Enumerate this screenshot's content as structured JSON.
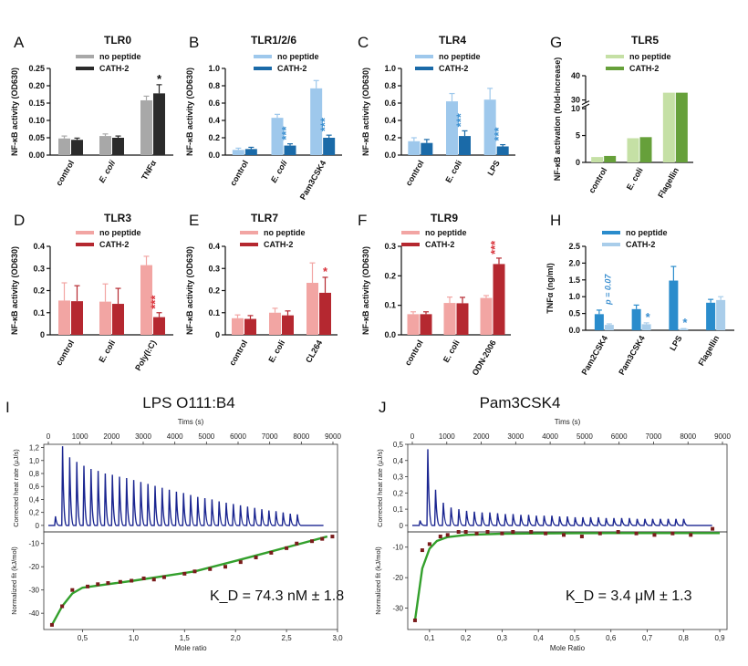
{
  "chart_data": [
    {
      "panel": "A",
      "type": "bar",
      "title": "TLR0",
      "ylabel": "NF-κB activity (OD630)",
      "ylim": [
        0,
        0.25
      ],
      "yticks": [
        "0.00",
        "0.05",
        "0.10",
        "0.15",
        "0.20",
        "0.25"
      ],
      "ytick_values": [
        0,
        0.05,
        0.1,
        0.15,
        0.2,
        0.25
      ],
      "categories": [
        "control",
        "E. coli",
        "TNFα"
      ],
      "series": [
        {
          "name": "no peptide",
          "color": "#a8a8a8",
          "values": [
            0.048,
            0.055,
            0.158
          ],
          "errors": [
            0.007,
            0.006,
            0.012
          ]
        },
        {
          "name": "CATH-2",
          "color": "#2b2b2b",
          "values": [
            0.044,
            0.05,
            0.178
          ],
          "errors": [
            0.005,
            0.005,
            0.025
          ]
        }
      ],
      "annotations": [
        {
          "category": 2,
          "text": "*",
          "color": "#111111"
        }
      ]
    },
    {
      "panel": "B",
      "type": "bar",
      "title": "TLR1/2/6",
      "ylabel": "NF-κB activity (OD630)",
      "ylim": [
        0,
        1.0
      ],
      "yticks": [
        "0.0",
        "0.2",
        "0.4",
        "0.6",
        "0.8",
        "1.0"
      ],
      "ytick_values": [
        0,
        0.2,
        0.4,
        0.6,
        0.8,
        1.0
      ],
      "categories": [
        "control",
        "E. coli",
        "Pam3CSK4"
      ],
      "series": [
        {
          "name": "no peptide",
          "color": "#9ec8ec",
          "values": [
            0.06,
            0.43,
            0.77
          ],
          "errors": [
            0.02,
            0.04,
            0.09
          ]
        },
        {
          "name": "CATH-2",
          "color": "#1a6aa8",
          "values": [
            0.07,
            0.11,
            0.2
          ],
          "errors": [
            0.02,
            0.02,
            0.03
          ]
        }
      ],
      "annotations": [
        {
          "category": 1,
          "text": "***",
          "color": "#3b8fd0"
        },
        {
          "category": 2,
          "text": "***",
          "color": "#3b8fd0"
        }
      ]
    },
    {
      "panel": "C",
      "type": "bar",
      "title": "TLR4",
      "ylabel": "NF-κB activity (OD630)",
      "ylim": [
        0,
        1.0
      ],
      "yticks": [
        "0.0",
        "0.2",
        "0.4",
        "0.6",
        "0.8",
        "1.0"
      ],
      "ytick_values": [
        0,
        0.2,
        0.4,
        0.6,
        0.8,
        1.0
      ],
      "categories": [
        "control",
        "E. coli",
        "LPS"
      ],
      "series": [
        {
          "name": "no peptide",
          "color": "#9ec8ec",
          "values": [
            0.16,
            0.62,
            0.64
          ],
          "errors": [
            0.04,
            0.09,
            0.13
          ]
        },
        {
          "name": "CATH-2",
          "color": "#1a6aa8",
          "values": [
            0.14,
            0.22,
            0.1
          ],
          "errors": [
            0.04,
            0.06,
            0.02
          ]
        }
      ],
      "annotations": [
        {
          "category": 1,
          "text": "***",
          "color": "#3b8fd0"
        },
        {
          "category": 2,
          "text": "***",
          "color": "#3b8fd0"
        }
      ]
    },
    {
      "panel": "G",
      "type": "bar",
      "title": "TLR5",
      "ylabel": "NF-κB activation (fold-increase)",
      "ylim": [
        0,
        40
      ],
      "axis_break": [
        10,
        30
      ],
      "yticks": [
        "0",
        "5",
        "10",
        "30",
        "40"
      ],
      "ytick_values": [
        0,
        5,
        10,
        30,
        40
      ],
      "categories": [
        "control",
        "E. coli",
        "Flagellin"
      ],
      "series": [
        {
          "name": "no peptide",
          "color": "#c5e0a5",
          "values": [
            1.0,
            4.5,
            33
          ],
          "errors": [
            0,
            0,
            0
          ]
        },
        {
          "name": "CATH-2",
          "color": "#66a03a",
          "values": [
            1.2,
            4.7,
            33
          ],
          "errors": [
            0,
            0,
            0
          ]
        }
      ],
      "annotations": []
    },
    {
      "panel": "D",
      "type": "bar",
      "title": "TLR3",
      "ylabel": "NF-κB activity (OD630)",
      "ylim": [
        0,
        0.4
      ],
      "yticks": [
        "0",
        "0.1",
        "0.2",
        "0.3",
        "0.4"
      ],
      "ytick_values": [
        0,
        0.1,
        0.2,
        0.3,
        0.4
      ],
      "categories": [
        "control",
        "E. coli",
        "Poly(I:C)"
      ],
      "series": [
        {
          "name": "no peptide",
          "color": "#f2a5a3",
          "values": [
            0.155,
            0.15,
            0.315
          ],
          "errors": [
            0.08,
            0.08,
            0.04
          ]
        },
        {
          "name": "CATH-2",
          "color": "#b52830",
          "values": [
            0.152,
            0.14,
            0.08
          ],
          "errors": [
            0.07,
            0.07,
            0.02
          ]
        }
      ],
      "annotations": [
        {
          "category": 2,
          "text": "***",
          "color": "#d9333b"
        }
      ]
    },
    {
      "panel": "E",
      "type": "bar",
      "title": "TLR7",
      "ylabel": "NF-κB activity (OD630)",
      "ylim": [
        0,
        0.4
      ],
      "yticks": [
        "0",
        "0.1",
        "0.2",
        "0.3",
        "0.4"
      ],
      "ytick_values": [
        0,
        0.1,
        0.2,
        0.3,
        0.4
      ],
      "categories": [
        "control",
        "E. coli",
        "CL264"
      ],
      "series": [
        {
          "name": "no peptide",
          "color": "#f2a5a3",
          "values": [
            0.075,
            0.1,
            0.235
          ],
          "errors": [
            0.015,
            0.02,
            0.09
          ]
        },
        {
          "name": "CATH-2",
          "color": "#b52830",
          "values": [
            0.072,
            0.088,
            0.19
          ],
          "errors": [
            0.015,
            0.02,
            0.07
          ]
        }
      ],
      "annotations": [
        {
          "category": 2,
          "text": "*",
          "color": "#d9333b"
        }
      ]
    },
    {
      "panel": "F",
      "type": "bar",
      "title": "TLR9",
      "ylabel": "NF-κB activity (OD630)",
      "ylim": [
        0,
        0.3
      ],
      "yticks": [
        "0.0",
        "0.1",
        "0.2",
        "0.3"
      ],
      "ytick_values": [
        0,
        0.1,
        0.2,
        0.3
      ],
      "categories": [
        "control",
        "E. coli",
        "ODN-2006"
      ],
      "series": [
        {
          "name": "no peptide",
          "color": "#f2a5a3",
          "values": [
            0.07,
            0.108,
            0.125
          ],
          "errors": [
            0.008,
            0.02,
            0.008
          ]
        },
        {
          "name": "CATH-2",
          "color": "#b52830",
          "values": [
            0.07,
            0.107,
            0.24
          ],
          "errors": [
            0.008,
            0.02,
            0.02
          ]
        }
      ],
      "annotations": [
        {
          "category": 2,
          "text": "***",
          "color": "#d9333b"
        }
      ]
    },
    {
      "panel": "H",
      "type": "bar",
      "title": "",
      "ylabel": "TNFα (ng/ml)",
      "ylim": [
        0,
        2.5
      ],
      "yticks": [
        "0.0",
        "0.5",
        "1.0",
        "1.5",
        "2.0",
        "2.5"
      ],
      "ytick_values": [
        0,
        0.5,
        1.0,
        1.5,
        2.0,
        2.5
      ],
      "categories": [
        "Pam2CSK4",
        "Pam3CSK4",
        "LPS",
        "Flagellin"
      ],
      "series": [
        {
          "name": "no peptide",
          "color": "#2a8ccc",
          "values": [
            0.48,
            0.63,
            1.48,
            0.82
          ],
          "errors": [
            0.12,
            0.12,
            0.42,
            0.1
          ]
        },
        {
          "name": "CATH-2",
          "color": "#a9cdea",
          "values": [
            0.16,
            0.18,
            0.04,
            0.9
          ],
          "errors": [
            0.03,
            0.04,
            0.01,
            0.1
          ]
        }
      ],
      "annotations": [
        {
          "category": 0,
          "text": "p = 0.07",
          "color": "#3b8fd0",
          "rotated": true
        },
        {
          "category": 1,
          "text": "*",
          "color": "#3b8fd0"
        },
        {
          "category": 2,
          "text": "*",
          "color": "#3b8fd0"
        }
      ]
    },
    {
      "panel": "I",
      "type": "line",
      "title": "LPS O111:B4",
      "top": {
        "xlabel": "Tims (s)",
        "xlim": [
          0,
          9000
        ],
        "xticks": [
          0,
          1000,
          2000,
          3000,
          4000,
          5000,
          6000,
          7000,
          8000,
          9000
        ],
        "ylabel": "Corrected heat rate (μJ/s)",
        "ylim": [
          -0.1,
          1.25
        ],
        "yticks": [
          "0",
          "0,2",
          "0,4",
          "0,6",
          "0,8",
          "1,0",
          "1,2"
        ],
        "ytick_values": [
          0,
          0.2,
          0.4,
          0.6,
          0.8,
          1.0,
          1.2
        ],
        "color": "#1a2590",
        "first_peak_time": 200,
        "injection_interval": 225,
        "peaks": [
          0.14,
          1.22,
          1.05,
          0.98,
          0.92,
          0.87,
          0.84,
          0.8,
          0.78,
          0.75,
          0.73,
          0.7,
          0.67,
          0.64,
          0.61,
          0.58,
          0.55,
          0.52,
          0.5,
          0.47,
          0.44,
          0.42,
          0.4,
          0.37,
          0.35,
          0.33,
          0.31,
          0.29,
          0.27,
          0.25,
          0.23,
          0.22,
          0.2,
          0.18,
          0.17
        ]
      },
      "bottom": {
        "xlabel": "Mole ratio",
        "xlim": [
          0.12,
          3.0
        ],
        "xticks": [
          0.5,
          1.0,
          1.5,
          2.0,
          2.5,
          3.0
        ],
        "xtick_labels": [
          "0,5",
          "1,0",
          "1,5",
          "2,0",
          "2,5",
          "3,0"
        ],
        "ylabel": "Normalized fit (kJ/mol)",
        "ylim": [
          -47,
          -5
        ],
        "yticks": [
          "-10",
          "-20",
          "-30",
          "-40"
        ],
        "ytick_values": [
          -10,
          -20,
          -30,
          -40
        ],
        "points_x": [
          0.2,
          0.3,
          0.4,
          0.55,
          0.65,
          0.75,
          0.87,
          0.98,
          1.1,
          1.2,
          1.3,
          1.5,
          1.6,
          1.75,
          1.9,
          2.05,
          2.2,
          2.35,
          2.5,
          2.6,
          2.75,
          2.85,
          2.95
        ],
        "points_y": [
          -45,
          -37,
          -30,
          -28.5,
          -27.5,
          -27,
          -26.5,
          -26,
          -25,
          -25.5,
          -24.5,
          -23,
          -22,
          -21,
          -20,
          -18,
          -16,
          -14,
          -12,
          -10,
          -9,
          -8,
          -7
        ],
        "fit_x": [
          0.2,
          0.3,
          0.4,
          0.5,
          0.7,
          1.0,
          1.3,
          1.6,
          2.0,
          2.3,
          2.6,
          2.9
        ],
        "fit_y": [
          -45,
          -37,
          -31.5,
          -29,
          -27.8,
          -26,
          -24,
          -22,
          -17.5,
          -14,
          -10.5,
          -7
        ],
        "kd_text": "K_D = 74.3 nM ± 1.8"
      }
    },
    {
      "panel": "J",
      "type": "line",
      "title": "Pam3CSK4",
      "top": {
        "xlabel": "Tims (s)",
        "xlim": [
          0,
          9000
        ],
        "xticks": [
          0,
          1000,
          2000,
          3000,
          4000,
          5000,
          6000,
          7000,
          8000,
          9000
        ],
        "ylabel": "Corrected heat rate (μJ/s)",
        "ylim": [
          -0.04,
          0.5
        ],
        "yticks": [
          "0",
          "0,1",
          "0,2",
          "0,3",
          "0,4",
          "0,5"
        ],
        "ytick_values": [
          0,
          0.1,
          0.2,
          0.3,
          0.4,
          0.5
        ],
        "color": "#1a2590",
        "first_peak_time": 200,
        "injection_interval": 225,
        "peaks": [
          0.03,
          0.47,
          0.22,
          0.14,
          0.11,
          0.1,
          0.09,
          0.085,
          0.08,
          0.08,
          0.075,
          0.07,
          0.07,
          0.065,
          0.065,
          0.06,
          0.06,
          0.06,
          0.055,
          0.055,
          0.05,
          0.05,
          0.05,
          0.05,
          0.045,
          0.045,
          0.045,
          0.045,
          0.04,
          0.04,
          0.04,
          0.04,
          0.04,
          0.04,
          0.04
        ]
      },
      "bottom": {
        "xlabel": "Mole Ratio",
        "xlim": [
          0.04,
          0.92
        ],
        "xticks": [
          0.1,
          0.2,
          0.3,
          0.4,
          0.5,
          0.6,
          0.7,
          0.8,
          0.9
        ],
        "xtick_labels": [
          "0,1",
          "0,2",
          "0,3",
          "0,4",
          "0,5",
          "0,6",
          "0,7",
          "0,8",
          "0,9"
        ],
        "ylabel": "Normalized fit (kJ/mol)",
        "ylim": [
          -37,
          -5
        ],
        "yticks": [
          "-10",
          "-20",
          "-30"
        ],
        "ytick_values": [
          -10,
          -20,
          -30
        ],
        "points_x": [
          0.06,
          0.08,
          0.1,
          0.13,
          0.15,
          0.18,
          0.2,
          0.23,
          0.26,
          0.3,
          0.33,
          0.38,
          0.42,
          0.47,
          0.52,
          0.57,
          0.62,
          0.67,
          0.72,
          0.77,
          0.82,
          0.88
        ],
        "points_y": [
          -34,
          -11,
          -9,
          -6.5,
          -6,
          -5,
          -5,
          -5.5,
          -5,
          -5.5,
          -5,
          -5,
          -5.5,
          -6,
          -6.5,
          -5.5,
          -5,
          -5.5,
          -6,
          -5.5,
          -6,
          -4
        ],
        "fit_x": [
          0.06,
          0.08,
          0.1,
          0.12,
          0.15,
          0.2,
          0.3,
          0.4,
          0.6,
          0.9
        ],
        "fit_y": [
          -34,
          -17,
          -10.5,
          -8,
          -6.7,
          -6,
          -5.6,
          -5.5,
          -5.4,
          -5.4
        ],
        "kd_text": "K_D = 3.4 μM ± 1.3"
      }
    }
  ],
  "panel_letters": [
    "A",
    "B",
    "C",
    "G",
    "D",
    "E",
    "F",
    "H",
    "I",
    "J"
  ],
  "colors": {
    "fit_line": "#33a02c",
    "points": "#7a1c1c"
  }
}
